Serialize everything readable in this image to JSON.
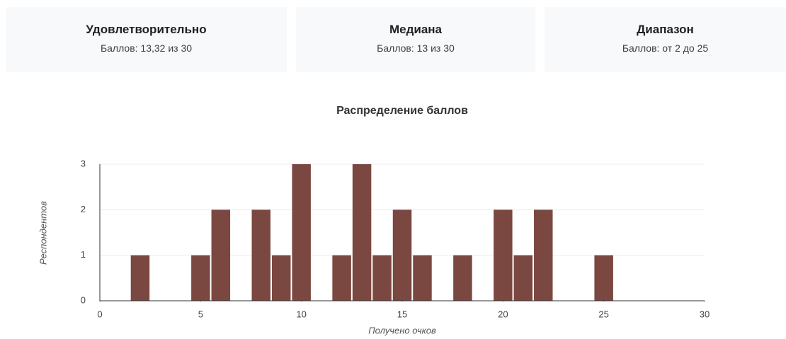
{
  "cards": [
    {
      "title": "Удовлетворительно",
      "subtitle": "Баллов: 13,32 из 30"
    },
    {
      "title": "Медиана",
      "subtitle": "Баллов: 13 из 30"
    },
    {
      "title": "Диапазон",
      "subtitle": "Баллов: от 2 до 25"
    }
  ],
  "chart_data": {
    "type": "bar",
    "title": "Распределение баллов",
    "x_label": "Получено очков",
    "y_label": "Респондентов",
    "x": [
      2,
      5,
      6,
      8,
      9,
      10,
      12,
      13,
      14,
      15,
      16,
      18,
      20,
      21,
      22,
      25
    ],
    "values": [
      1,
      1,
      2,
      2,
      1,
      3,
      1,
      3,
      1,
      2,
      1,
      1,
      2,
      1,
      2,
      1
    ],
    "color": "#7b4741",
    "xlim": [
      0,
      30
    ],
    "xticks": [
      0,
      5,
      10,
      15,
      20,
      25,
      30
    ],
    "ylim": [
      0,
      3
    ],
    "yticks": [
      0,
      1,
      2,
      3
    ],
    "grid": true
  }
}
